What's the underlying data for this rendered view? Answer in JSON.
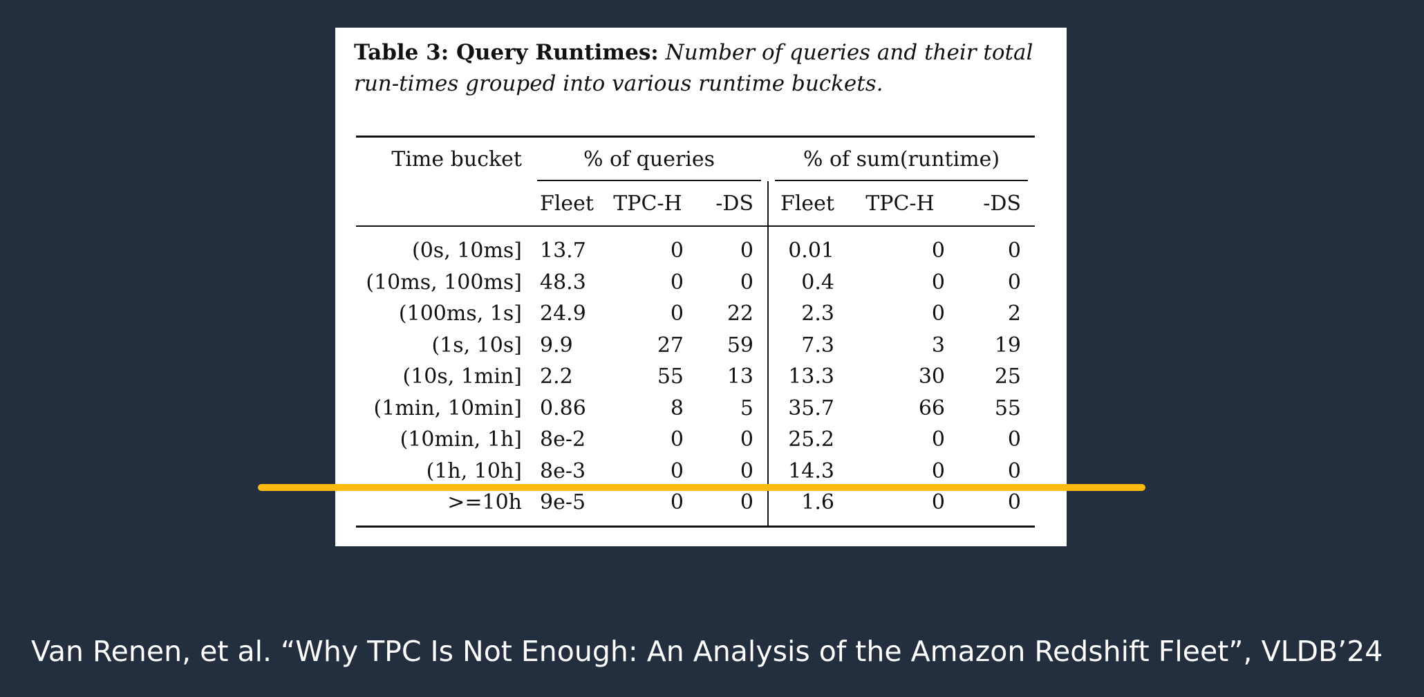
{
  "caption": {
    "label": "Table 3: Query Runtimes:",
    "text": "Number of queries and their total run-times grouped into various runtime buckets."
  },
  "table": {
    "header": {
      "time_bucket": "Time bucket",
      "group_queries": "% of queries",
      "group_runtime": "% of sum(runtime)",
      "sub_fleet": "Fleet",
      "sub_tpch": "TPC-H",
      "sub_ds": "-DS",
      "sub_fleet2": "Fleet",
      "sub_tpch2": "TPC-H",
      "sub_ds2": "-DS"
    },
    "rows": [
      {
        "bucket": "(0s, 10ms]",
        "q_fleet": "13.7",
        "q_tpch": "0",
        "q_ds": "0",
        "r_fleet": "0.01",
        "r_tpch": "0",
        "r_ds": "0"
      },
      {
        "bucket": "(10ms, 100ms]",
        "q_fleet": "48.3",
        "q_tpch": "0",
        "q_ds": "0",
        "r_fleet": "0.4",
        "r_tpch": "0",
        "r_ds": "0"
      },
      {
        "bucket": "(100ms, 1s]",
        "q_fleet": "24.9",
        "q_tpch": "0",
        "q_ds": "22",
        "r_fleet": "2.3",
        "r_tpch": "0",
        "r_ds": "2"
      },
      {
        "bucket": "(1s, 10s]",
        "q_fleet": "9.9",
        "q_tpch": "27",
        "q_ds": "59",
        "r_fleet": "7.3",
        "r_tpch": "3",
        "r_ds": "19"
      },
      {
        "bucket": "(10s, 1min]",
        "q_fleet": "2.2",
        "q_tpch": "55",
        "q_ds": "13",
        "r_fleet": "13.3",
        "r_tpch": "30",
        "r_ds": "25"
      },
      {
        "bucket": "(1min, 10min]",
        "q_fleet": "0.86",
        "q_tpch": "8",
        "q_ds": "5",
        "r_fleet": "35.7",
        "r_tpch": "66",
        "r_ds": "55"
      },
      {
        "bucket": "(10min, 1h]",
        "q_fleet": "8e-2",
        "q_tpch": "0",
        "q_ds": "0",
        "r_fleet": "25.2",
        "r_tpch": "0",
        "r_ds": "0"
      },
      {
        "bucket": "(1h, 10h]",
        "q_fleet": "8e-3",
        "q_tpch": "0",
        "q_ds": "0",
        "r_fleet": "14.3",
        "r_tpch": "0",
        "r_ds": "0"
      },
      {
        "bucket": ">=10h",
        "q_fleet": "9e-5",
        "q_tpch": "0",
        "q_ds": "0",
        "r_fleet": "1.6",
        "r_tpch": "0",
        "r_ds": "0"
      }
    ]
  },
  "highlight": {
    "color": "#fdbb10"
  },
  "citation": {
    "text": "Van Renen, et al. “Why TPC Is Not Enough: An Analysis of the Amazon Redshift Fleet”, VLDB’24"
  },
  "colors": {
    "background": "#232f3e",
    "card": "#ffffff",
    "text": "#111111"
  }
}
